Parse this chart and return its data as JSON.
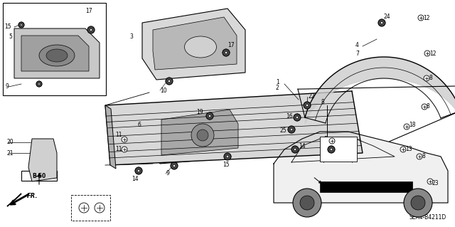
{
  "diagram_code": "SEA4-B4211D",
  "background_color": "#ffffff",
  "figsize": [
    6.4,
    3.19
  ],
  "dpi": 100
}
